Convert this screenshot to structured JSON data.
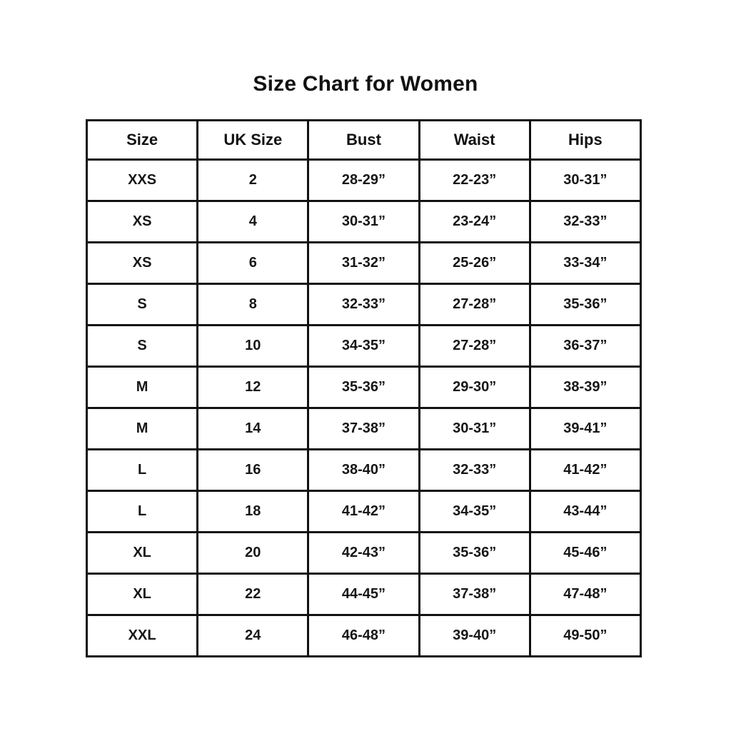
{
  "title": "Size Chart for Women",
  "chart_data": {
    "type": "table",
    "title": "Size Chart for Women",
    "columns": [
      "Size",
      "UK Size",
      "Bust",
      "Waist",
      "Hips"
    ],
    "rows": [
      [
        "XXS",
        "2",
        "28-29”",
        "22-23”",
        "30-31”"
      ],
      [
        "XS",
        "4",
        "30-31”",
        "23-24”",
        "32-33”"
      ],
      [
        "XS",
        "6",
        "31-32”",
        "25-26”",
        "33-34”"
      ],
      [
        "S",
        "8",
        "32-33”",
        "27-28”",
        "35-36”"
      ],
      [
        "S",
        "10",
        "34-35”",
        "27-28”",
        "36-37”"
      ],
      [
        "M",
        "12",
        "35-36”",
        "29-30”",
        "38-39”"
      ],
      [
        "M",
        "14",
        "37-38”",
        "30-31”",
        "39-41”"
      ],
      [
        "L",
        "16",
        "38-40”",
        "32-33”",
        "41-42”"
      ],
      [
        "L",
        "18",
        "41-42”",
        "34-35”",
        "43-44”"
      ],
      [
        "XL",
        "20",
        "42-43”",
        "35-36”",
        "45-46”"
      ],
      [
        "XL",
        "22",
        "44-45”",
        "37-38”",
        "47-48”"
      ],
      [
        "XXL",
        "24",
        "46-48”",
        "39-40”",
        "49-50”"
      ]
    ]
  }
}
